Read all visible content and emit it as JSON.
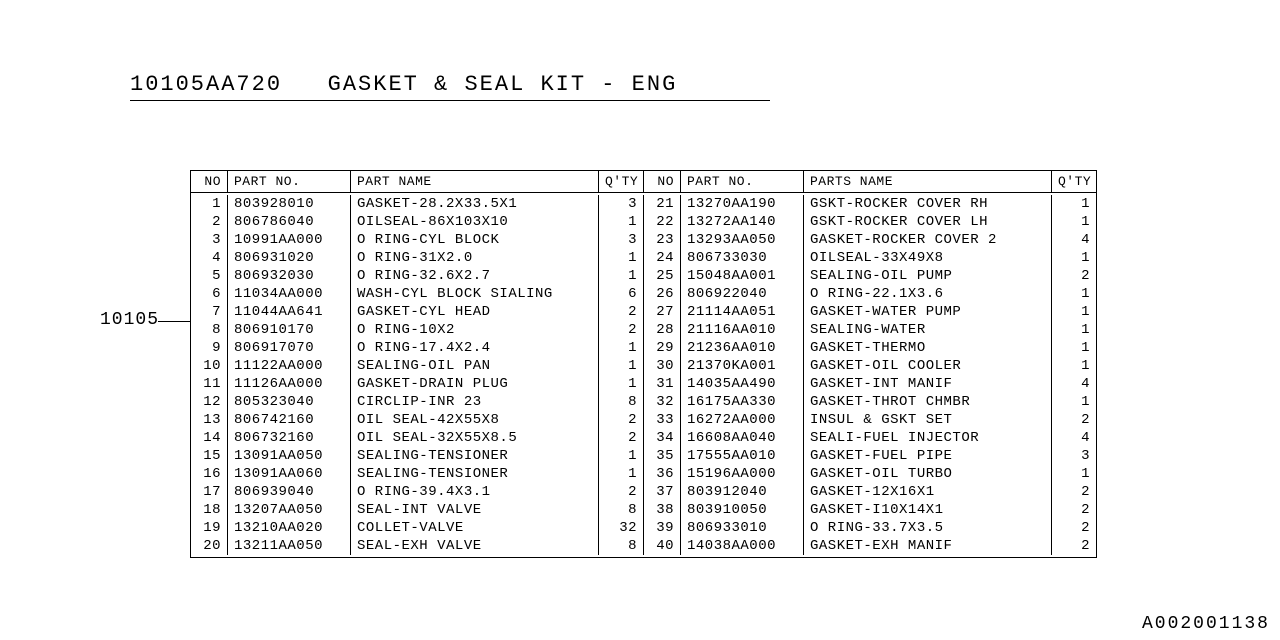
{
  "title_part": "10105AA720",
  "title_text": "GASKET & SEAL KIT - ENG",
  "callout": "10105",
  "doc_no": "A002001138",
  "headers": {
    "no": "NO",
    "part_no": "PART NO.",
    "part_name_l": "PART NAME",
    "part_name_r": "PARTS NAME",
    "qty": "Q'TY"
  },
  "colors": {
    "bg": "#ffffff",
    "fg": "#000000",
    "border": "#000000"
  },
  "left": [
    {
      "no": "1",
      "pn": "803928010",
      "name": "GASKET-28.2X33.5X1",
      "qty": "3"
    },
    {
      "no": "2",
      "pn": "806786040",
      "name": "OILSEAL-86X103X10",
      "qty": "1"
    },
    {
      "no": "3",
      "pn": "10991AA000",
      "name": "O RING-CYL BLOCK",
      "qty": "3"
    },
    {
      "no": "4",
      "pn": "806931020",
      "name": "O RING-31X2.0",
      "qty": "1"
    },
    {
      "no": "5",
      "pn": "806932030",
      "name": "O RING-32.6X2.7",
      "qty": "1"
    },
    {
      "no": "6",
      "pn": "11034AA000",
      "name": "WASH-CYL BLOCK SIALING",
      "qty": "6"
    },
    {
      "no": "7",
      "pn": "11044AA641",
      "name": "GASKET-CYL HEAD",
      "qty": "2"
    },
    {
      "no": "8",
      "pn": "806910170",
      "name": "O RING-10X2",
      "qty": "2"
    },
    {
      "no": "9",
      "pn": "806917070",
      "name": "O RING-17.4X2.4",
      "qty": "1"
    },
    {
      "no": "10",
      "pn": "11122AA000",
      "name": "SEALING-OIL PAN",
      "qty": "1"
    },
    {
      "no": "11",
      "pn": "11126AA000",
      "name": "GASKET-DRAIN PLUG",
      "qty": "1"
    },
    {
      "no": "12",
      "pn": "805323040",
      "name": "CIRCLIP-INR 23",
      "qty": "8"
    },
    {
      "no": "13",
      "pn": "806742160",
      "name": "OIL SEAL-42X55X8",
      "qty": "2"
    },
    {
      "no": "14",
      "pn": "806732160",
      "name": "OIL SEAL-32X55X8.5",
      "qty": "2"
    },
    {
      "no": "15",
      "pn": "13091AA050",
      "name": "SEALING-TENSIONER",
      "qty": "1"
    },
    {
      "no": "16",
      "pn": "13091AA060",
      "name": "SEALING-TENSIONER",
      "qty": "1"
    },
    {
      "no": "17",
      "pn": "806939040",
      "name": "O RING-39.4X3.1",
      "qty": "2"
    },
    {
      "no": "18",
      "pn": "13207AA050",
      "name": "SEAL-INT VALVE",
      "qty": "8"
    },
    {
      "no": "19",
      "pn": "13210AA020",
      "name": "COLLET-VALVE",
      "qty": "32"
    },
    {
      "no": "20",
      "pn": "13211AA050",
      "name": "SEAL-EXH VALVE",
      "qty": "8"
    }
  ],
  "right": [
    {
      "no": "21",
      "pn": "13270AA190",
      "name": "GSKT-ROCKER COVER RH",
      "qty": "1"
    },
    {
      "no": "22",
      "pn": "13272AA140",
      "name": "GSKT-ROCKER COVER LH",
      "qty": "1"
    },
    {
      "no": "23",
      "pn": "13293AA050",
      "name": "GASKET-ROCKER COVER 2",
      "qty": "4"
    },
    {
      "no": "24",
      "pn": "806733030",
      "name": "OILSEAL-33X49X8",
      "qty": "1"
    },
    {
      "no": "25",
      "pn": "15048AA001",
      "name": "SEALING-OIL PUMP",
      "qty": "2"
    },
    {
      "no": "26",
      "pn": "806922040",
      "name": "O RING-22.1X3.6",
      "qty": "1"
    },
    {
      "no": "27",
      "pn": "21114AA051",
      "name": "GASKET-WATER PUMP",
      "qty": "1"
    },
    {
      "no": "28",
      "pn": "21116AA010",
      "name": "SEALING-WATER",
      "qty": "1"
    },
    {
      "no": "29",
      "pn": "21236AA010",
      "name": "GASKET-THERMO",
      "qty": "1"
    },
    {
      "no": "30",
      "pn": "21370KA001",
      "name": "GASKET-OIL COOLER",
      "qty": "1"
    },
    {
      "no": "31",
      "pn": "14035AA490",
      "name": "GASKET-INT MANIF",
      "qty": "4"
    },
    {
      "no": "32",
      "pn": "16175AA330",
      "name": "GASKET-THROT CHMBR",
      "qty": "1"
    },
    {
      "no": "33",
      "pn": "16272AA000",
      "name": "INSUL & GSKT SET",
      "qty": "2"
    },
    {
      "no": "34",
      "pn": "16608AA040",
      "name": "SEALI-FUEL INJECTOR",
      "qty": "4"
    },
    {
      "no": "35",
      "pn": "17555AA010",
      "name": "GASKET-FUEL PIPE",
      "qty": "3"
    },
    {
      "no": "36",
      "pn": "15196AA000",
      "name": "GASKET-OIL TURBO",
      "qty": "1"
    },
    {
      "no": "37",
      "pn": "803912040",
      "name": "GASKET-12X16X1",
      "qty": "2"
    },
    {
      "no": "38",
      "pn": "803910050",
      "name": "GASKET-I10X14X1",
      "qty": "2"
    },
    {
      "no": "39",
      "pn": "806933010",
      "name": "O RING-33.7X3.5",
      "qty": "2"
    },
    {
      "no": "40",
      "pn": "14038AA000",
      "name": "GASKET-EXH MANIF",
      "qty": "2"
    }
  ]
}
